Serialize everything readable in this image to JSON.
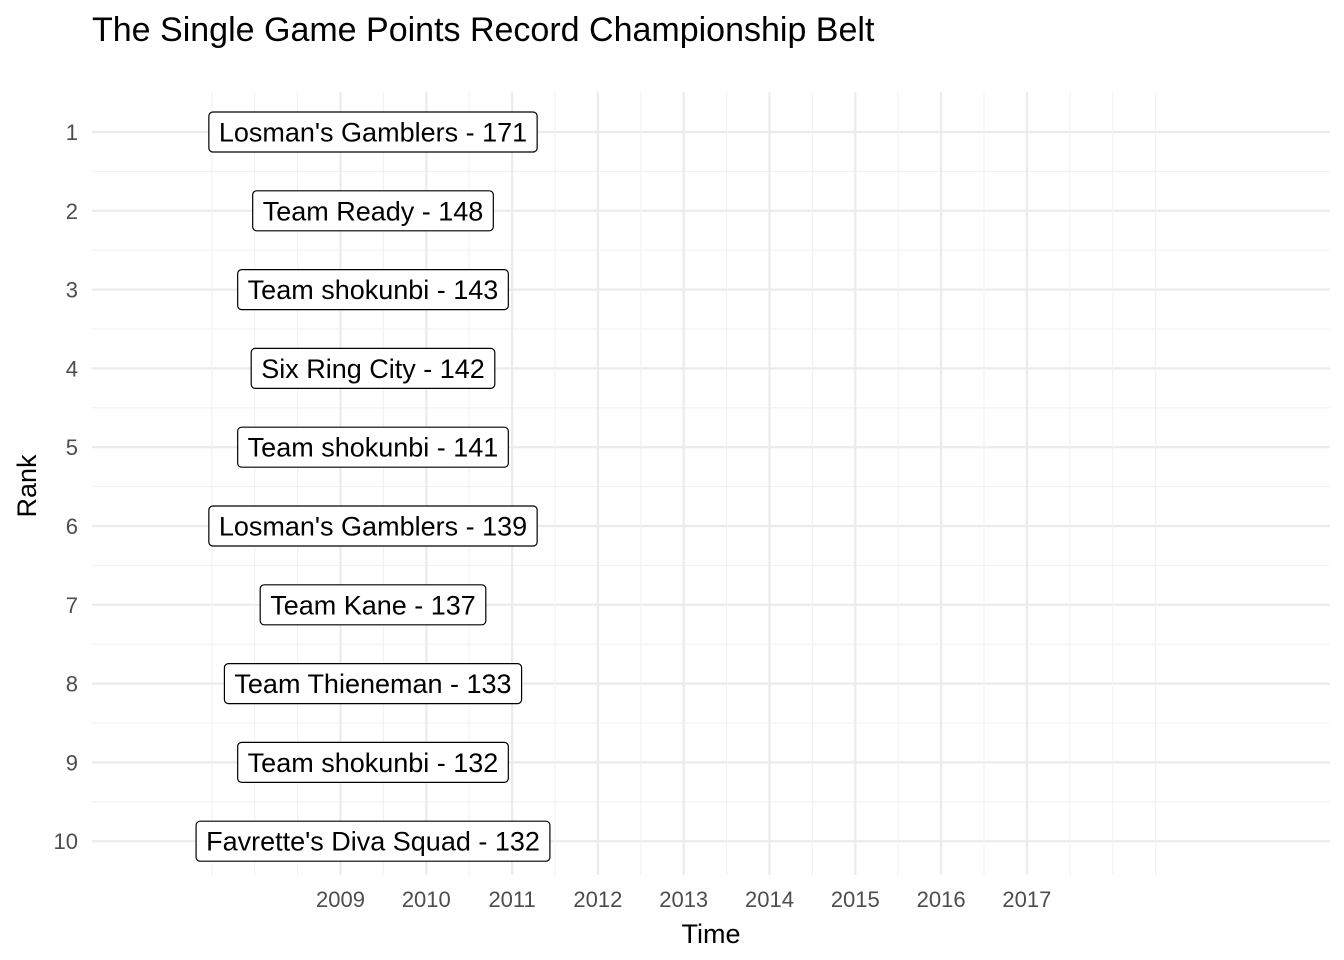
{
  "chart_data": {
    "type": "table",
    "title": "The Single Game Points Record Championship Belt",
    "xlabel": "Time",
    "ylabel": "Rank",
    "x_ticks": [
      "2009",
      "2010",
      "2011",
      "2012",
      "2013",
      "2014",
      "2015",
      "2016",
      "2017"
    ],
    "y_ticks": [
      "1",
      "2",
      "3",
      "4",
      "5",
      "6",
      "7",
      "8",
      "9",
      "10"
    ],
    "grid": true,
    "labels": [
      {
        "rank": 1,
        "text": "Losman's Gamblers - 171"
      },
      {
        "rank": 2,
        "text": "Team Ready - 148"
      },
      {
        "rank": 3,
        "text": "Team shokunbi - 143"
      },
      {
        "rank": 4,
        "text": "Six Ring City - 142"
      },
      {
        "rank": 5,
        "text": "Team shokunbi - 141"
      },
      {
        "rank": 6,
        "text": "Losman's Gamblers - 139"
      },
      {
        "rank": 7,
        "text": "Team Kane - 137"
      },
      {
        "rank": 8,
        "text": "Team Thieneman - 133"
      },
      {
        "rank": 9,
        "text": "Team shokunbi - 132"
      },
      {
        "rank": 10,
        "text": "Favrette's Diva Squad - 132"
      }
    ]
  }
}
